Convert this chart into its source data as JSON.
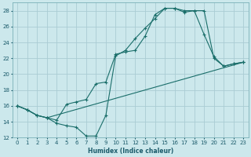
{
  "xlabel": "Humidex (Indice chaleur)",
  "bg_color": "#cce8ec",
  "grid_color": "#aaccd4",
  "line_color": "#1a6e6a",
  "xlim": [
    -0.5,
    23.5
  ],
  "ylim": [
    12,
    29
  ],
  "xticks": [
    0,
    1,
    2,
    3,
    4,
    5,
    6,
    7,
    8,
    9,
    10,
    11,
    12,
    13,
    14,
    15,
    16,
    17,
    18,
    19,
    20,
    21,
    22,
    23
  ],
  "yticks": [
    12,
    14,
    16,
    18,
    20,
    22,
    24,
    26,
    28
  ],
  "line1_x": [
    0,
    1,
    2,
    3,
    4,
    5,
    6,
    7,
    8,
    9,
    10,
    11,
    12,
    13,
    14,
    15,
    16,
    17,
    18,
    19,
    20,
    21,
    22,
    23
  ],
  "line1_y": [
    16.0,
    15.5,
    14.8,
    14.5,
    13.8,
    13.5,
    13.3,
    12.2,
    12.2,
    14.8,
    22.3,
    23.0,
    24.5,
    25.8,
    27.0,
    28.3,
    28.3,
    28.0,
    28.0,
    25.0,
    22.2,
    21.0,
    21.3,
    21.5
  ],
  "line2_x": [
    0,
    1,
    2,
    3,
    4,
    5,
    6,
    7,
    8,
    9,
    10,
    11,
    12,
    13,
    14,
    15,
    16,
    17,
    18,
    19,
    20,
    21,
    22,
    23
  ],
  "line2_y": [
    16.0,
    15.5,
    14.8,
    14.5,
    14.2,
    16.2,
    16.5,
    16.8,
    18.8,
    19.0,
    22.5,
    22.8,
    23.0,
    24.8,
    27.5,
    28.3,
    28.3,
    27.8,
    28.0,
    28.0,
    22.0,
    21.0,
    21.3,
    21.5
  ],
  "line3_x": [
    0,
    1,
    2,
    3,
    23
  ],
  "line3_y": [
    16.0,
    15.5,
    14.8,
    14.5,
    21.5
  ]
}
